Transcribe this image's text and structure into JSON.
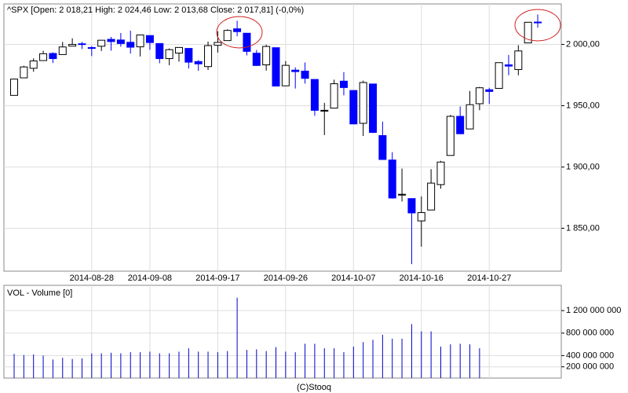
{
  "chart_data": [
    {
      "type": "candlestick",
      "title": "^SPX [Open: 2 018,21  High: 2 024,46  Low: 2 013,68  Close: 2 017,81]  (-0,0%)",
      "categories": [
        null,
        null,
        null,
        null,
        null,
        null,
        null,
        null,
        "2014-08-28",
        null,
        null,
        null,
        null,
        null,
        "2014-09-08",
        null,
        null,
        null,
        null,
        null,
        null,
        "2014-09-17",
        null,
        null,
        null,
        null,
        null,
        null,
        "2014-09-26",
        null,
        null,
        null,
        null,
        null,
        null,
        "2014-10-07",
        null,
        null,
        null,
        null,
        null,
        null,
        "2014-10-16",
        null,
        null,
        null,
        null,
        null,
        null,
        "2014-10-27",
        null,
        null,
        null,
        null,
        null
      ],
      "open": [
        1958.4,
        1972.7,
        1980.5,
        1986.8,
        1992.6,
        1991.7,
        1998.6,
        2000.5,
        1997.4,
        1998.5,
        2004.1,
        2003.6,
        2001.7,
        1998.0,
        2007.2,
        2000.7,
        1988.4,
        1992.9,
        1996.7,
        1986.0,
        1981.9,
        1999.3,
        2003.1,
        2012.7,
        2009.1,
        1992.8,
        1983.3,
        1997.3,
        1966.2,
        1979.0,
        1978.2,
        1971.4,
        1945.8,
        1948.0,
        1970.0,
        1962.4,
        1935.6,
        1967.7,
        1925.6,
        1905.7,
        1877.1,
        1874.2,
        1856.0,
        1864.9,
        1885.6,
        1909.4,
        1941.3,
        1931.0,
        1951.6,
        1963.0,
        1964.1,
        1983.3,
        1979.5,
        2001.2,
        2018.21
      ],
      "high": [
        1972.0,
        1982.6,
        1988.6,
        1994.8,
        1993.5,
        2002.0,
        2005.0,
        2002.1,
        1998.6,
        2003.4,
        2006.1,
        2009.3,
        2011.2,
        2007.7,
        2007.2,
        2001.0,
        1996.7,
        1997.7,
        1996.7,
        1987.2,
        2002.3,
        2010.7,
        2012.3,
        2019.3,
        2009.1,
        1995.4,
        1999.8,
        1997.3,
        1986.4,
        1981.3,
        1985.2,
        1971.4,
        1952.3,
        1971.2,
        1977.4,
        1962.4,
        1970.4,
        1967.7,
        1937.0,
        1912.1,
        1898.7,
        1874.2,
        1876.0,
        1898.2,
        1905.0,
        1942.5,
        1949.3,
        1962.0,
        1965.3,
        1964.6,
        1985.1,
        1991.4,
        1999.4,
        2018.2,
        2024.46
      ],
      "low": [
        1958.4,
        1972.7,
        1977.7,
        1986.8,
        1984.8,
        1991.7,
        1998.6,
        1996.2,
        1990.5,
        1994.6,
        1994.9,
        1998.1,
        1992.5,
        1990.1,
        1995.6,
        1984.6,
        1983.0,
        1985.9,
        1980.3,
        1978.5,
        1979.1,
        1993.3,
        2003.1,
        2006.6,
        1991.0,
        1982.4,
        1978.6,
        1966.0,
        1966.2,
        1964.0,
        1968.0,
        1941.7,
        1926.0,
        1948.0,
        1958.4,
        1935.1,
        1925.3,
        1927.6,
        1906.1,
        1874.1,
        1871.8,
        1820.7,
        1835.0,
        1864.9,
        1882.3,
        1909.4,
        1926.8,
        1931.0,
        1946.3,
        1951.4,
        1964.1,
        1974.8,
        1974.8,
        2001.2,
        2013.68
      ],
      "close": [
        1971.7,
        1981.6,
        1986.5,
        1992.4,
        1988.4,
        1997.9,
        2000.0,
        2000.1,
        1996.7,
        2003.4,
        2002.3,
        2000.7,
        1997.7,
        2007.7,
        2001.5,
        1988.4,
        1995.7,
        1997.5,
        1985.5,
        1984.1,
        1999.0,
        2001.6,
        2011.4,
        2010.4,
        1994.3,
        1982.8,
        1998.3,
        1966.0,
        1982.9,
        1977.8,
        1972.3,
        1946.2,
        1946.2,
        1967.9,
        1964.8,
        1935.1,
        1968.9,
        1928.2,
        1906.1,
        1874.7,
        1877.7,
        1862.5,
        1862.8,
        1886.8,
        1904.0,
        1941.3,
        1927.1,
        1950.8,
        1964.6,
        1961.6,
        1985.1,
        1982.3,
        1994.65,
        2018.05,
        2017.81
      ],
      "up_color": "#ffffff",
      "down_color": "#0000ff",
      "ylim": [
        1815,
        2033
      ],
      "yticks": [
        {
          "value": 1850,
          "label": "1 850,00"
        },
        {
          "value": 1900,
          "label": "1 900,00"
        },
        {
          "value": 1950,
          "label": "1 950,00"
        },
        {
          "value": 2000,
          "label": "2 000,00"
        }
      ],
      "grid": true
    },
    {
      "type": "bar",
      "title": "VOL - Volume [0]",
      "values": [
        430000000,
        410000000,
        420000000,
        400000000,
        330000000,
        360000000,
        340000000,
        350000000,
        440000000,
        440000000,
        450000000,
        440000000,
        460000000,
        460000000,
        470000000,
        440000000,
        440000000,
        470000000,
        530000000,
        470000000,
        470000000,
        460000000,
        480000000,
        1430000000,
        500000000,
        510000000,
        480000000,
        550000000,
        470000000,
        460000000,
        610000000,
        610000000,
        530000000,
        530000000,
        460000000,
        560000000,
        640000000,
        680000000,
        770000000,
        700000000,
        700000000,
        960000000,
        830000000,
        830000000,
        560000000,
        600000000,
        610000000,
        600000000,
        530000000,
        null,
        null,
        null,
        null,
        null,
        null
      ],
      "color": "#0000cc",
      "ylim": [
        0,
        1650000000
      ],
      "yticks": [
        {
          "value": 200000000,
          "label": "200 000 000"
        },
        {
          "value": 400000000,
          "label": "400 000 000"
        },
        {
          "value": 800000000,
          "label": "800 000 000"
        },
        {
          "value": 1200000000,
          "label": "1 200 000 000"
        }
      ],
      "grid": true
    }
  ],
  "footer": "(C)Stooq"
}
